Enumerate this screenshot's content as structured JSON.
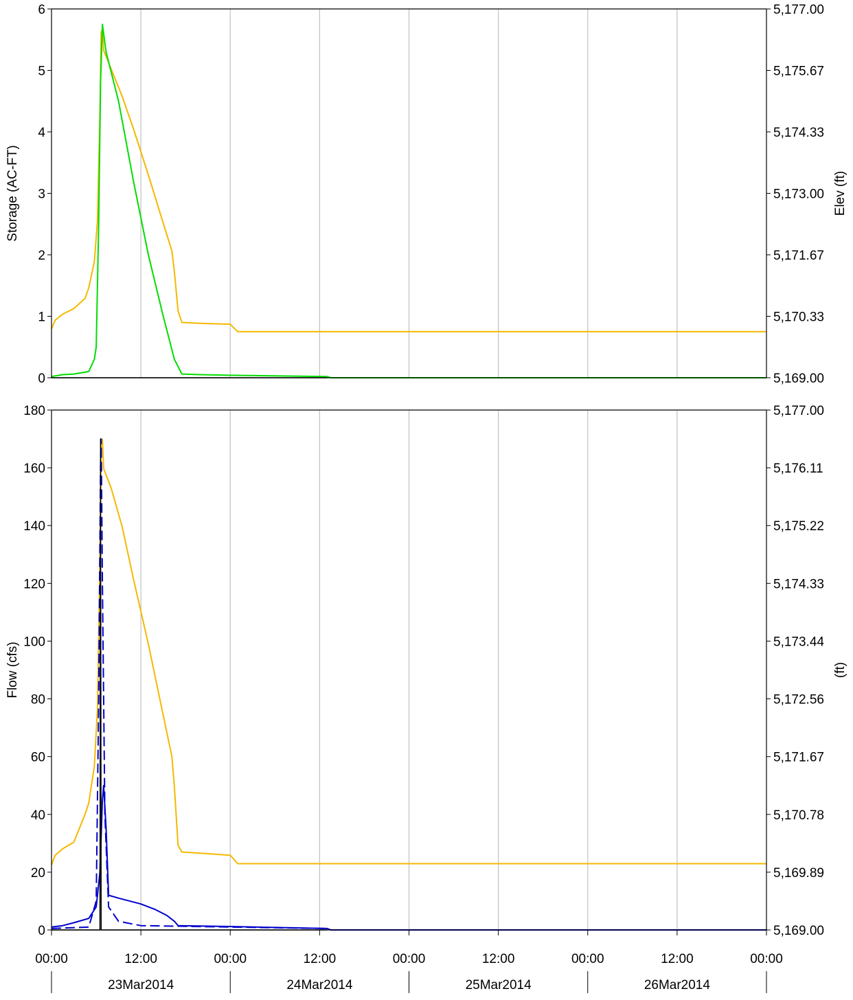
{
  "chart_data": [
    {
      "type": "line",
      "panel": "top",
      "ylabel": "Storage (AC-FT)",
      "y2label": "Elev (ft)",
      "xlim": [
        "2014-03-23T00:00",
        "2014-03-27T00:00"
      ],
      "ylim": [
        0,
        6
      ],
      "y2lim": [
        5169.0,
        5177.0
      ],
      "yticks": [
        "0",
        "1",
        "2",
        "3",
        "4",
        "5",
        "6"
      ],
      "y2ticks": [
        "5,169.00",
        "5,170.33",
        "5,171.67",
        "5,173.00",
        "5,174.33",
        "5,175.67",
        "5,177.00"
      ],
      "grid": true,
      "series": [
        {
          "axis": "y2",
          "color": "#f5b800",
          "style": "solid",
          "points": [
            [
              "2014-03-23T00:00",
              5170.06
            ],
            [
              "2014-03-23T00:30",
              5170.25
            ],
            [
              "2014-03-23T01:30",
              5170.38
            ],
            [
              "2014-03-23T03:00",
              5170.5
            ],
            [
              "2014-03-23T04:30",
              5170.72
            ],
            [
              "2014-03-23T05:00",
              5170.95
            ],
            [
              "2014-03-23T05:45",
              5171.52
            ],
            [
              "2014-03-23T06:10",
              5172.4
            ],
            [
              "2014-03-23T06:30",
              5174.7
            ],
            [
              "2014-03-23T06:40",
              5176.5
            ],
            [
              "2014-03-23T06:50",
              5176.55
            ],
            [
              "2014-03-23T07:00",
              5176.1
            ],
            [
              "2014-03-23T08:00",
              5175.7
            ],
            [
              "2014-03-23T09:30",
              5175.1
            ],
            [
              "2014-03-23T11:00",
              5174.4
            ],
            [
              "2014-03-23T13:00",
              5173.4
            ],
            [
              "2014-03-23T15:00",
              5172.35
            ],
            [
              "2014-03-23T16:10",
              5171.75
            ],
            [
              "2014-03-23T16:30",
              5171.3
            ],
            [
              "2014-03-23T17:00",
              5170.45
            ],
            [
              "2014-03-23T17:30",
              5170.2
            ],
            [
              "2014-03-23T20:00",
              5170.18
            ],
            [
              "2014-03-24T00:00",
              5170.16
            ],
            [
              "2014-03-24T01:00",
              5170.0
            ],
            [
              "2014-03-27T00:00",
              5170.0
            ]
          ]
        },
        {
          "axis": "y",
          "color": "#00dd00",
          "style": "solid",
          "points": [
            [
              "2014-03-23T00:00",
              0.02
            ],
            [
              "2014-03-23T01:30",
              0.05
            ],
            [
              "2014-03-23T03:00",
              0.06
            ],
            [
              "2014-03-23T05:00",
              0.1
            ],
            [
              "2014-03-23T05:45",
              0.3
            ],
            [
              "2014-03-23T06:00",
              0.5
            ],
            [
              "2014-03-23T06:20",
              2.5
            ],
            [
              "2014-03-23T06:35",
              4.8
            ],
            [
              "2014-03-23T06:50",
              5.75
            ],
            [
              "2014-03-23T07:20",
              5.3
            ],
            [
              "2014-03-23T09:00",
              4.5
            ],
            [
              "2014-03-23T11:00",
              3.2
            ],
            [
              "2014-03-23T13:00",
              2.0
            ],
            [
              "2014-03-23T15:00",
              1.0
            ],
            [
              "2014-03-23T16:30",
              0.3
            ],
            [
              "2014-03-23T17:30",
              0.06
            ],
            [
              "2014-03-23T20:00",
              0.05
            ],
            [
              "2014-03-24T00:00",
              0.04
            ],
            [
              "2014-03-24T13:00",
              0.02
            ],
            [
              "2014-03-24T13:30",
              0.0
            ],
            [
              "2014-03-27T00:00",
              0.0
            ]
          ]
        },
        {
          "axis": "y",
          "color": "#000000",
          "style": "solid",
          "points": [
            [
              "2014-03-23T00:00",
              0.0
            ],
            [
              "2014-03-24T13:00",
              0.0
            ]
          ]
        }
      ]
    },
    {
      "type": "line",
      "panel": "bottom",
      "ylabel": "Flow (cfs)",
      "y2label": "(ft)",
      "xlim": [
        "2014-03-23T00:00",
        "2014-03-27T00:00"
      ],
      "ylim": [
        0,
        180
      ],
      "y2lim": [
        5169.0,
        5177.0
      ],
      "yticks": [
        "0",
        "20",
        "40",
        "60",
        "80",
        "100",
        "120",
        "140",
        "160",
        "180"
      ],
      "y2ticks": [
        "5,169.00",
        "5,169.89",
        "5,170.78",
        "5,171.67",
        "5,172.56",
        "5,173.44",
        "5,174.33",
        "5,175.22",
        "5,176.11",
        "5,177.00"
      ],
      "grid": true,
      "series": [
        {
          "axis": "y2",
          "color": "#f5b800",
          "style": "solid",
          "points": [
            [
              "2014-03-23T00:00",
              5170.0
            ],
            [
              "2014-03-23T00:30",
              5170.15
            ],
            [
              "2014-03-23T01:30",
              5170.25
            ],
            [
              "2014-03-23T03:00",
              5170.35
            ],
            [
              "2014-03-23T04:30",
              5170.78
            ],
            [
              "2014-03-23T05:00",
              5170.95
            ],
            [
              "2014-03-23T05:45",
              5171.52
            ],
            [
              "2014-03-23T06:10",
              5172.4
            ],
            [
              "2014-03-23T06:30",
              5174.7
            ],
            [
              "2014-03-23T06:40",
              5176.5
            ],
            [
              "2014-03-23T06:50",
              5176.55
            ],
            [
              "2014-03-23T07:00",
              5176.1
            ],
            [
              "2014-03-23T08:00",
              5175.8
            ],
            [
              "2014-03-23T09:30",
              5175.2
            ],
            [
              "2014-03-23T11:00",
              5174.4
            ],
            [
              "2014-03-23T13:00",
              5173.4
            ],
            [
              "2014-03-23T15:00",
              5172.3
            ],
            [
              "2014-03-23T16:10",
              5171.67
            ],
            [
              "2014-03-23T16:30",
              5171.2
            ],
            [
              "2014-03-23T17:00",
              5170.3
            ],
            [
              "2014-03-23T17:30",
              5170.2
            ],
            [
              "2014-03-23T20:00",
              5170.18
            ],
            [
              "2014-03-24T00:00",
              5170.15
            ],
            [
              "2014-03-24T01:00",
              5170.02
            ],
            [
              "2014-03-27T00:00",
              5170.02
            ]
          ]
        },
        {
          "axis": "y",
          "color": "#0000cc",
          "style": "dashed",
          "points": [
            [
              "2014-03-23T00:00",
              0.5
            ],
            [
              "2014-03-23T05:00",
              1.0
            ],
            [
              "2014-03-23T06:00",
              10.0
            ],
            [
              "2014-03-23T06:20",
              80.0
            ],
            [
              "2014-03-23T06:35",
              160.0
            ],
            [
              "2014-03-23T06:40",
              170.0
            ],
            [
              "2014-03-23T06:50",
              120.0
            ],
            [
              "2014-03-23T07:10",
              40.0
            ],
            [
              "2014-03-23T07:40",
              8.0
            ],
            [
              "2014-03-23T09:00",
              3.0
            ],
            [
              "2014-03-23T12:00",
              1.5
            ],
            [
              "2014-03-24T00:00",
              1.0
            ],
            [
              "2014-03-24T13:00",
              0.5
            ],
            [
              "2014-03-24T13:30",
              0.0
            ],
            [
              "2014-03-27T00:00",
              0.0
            ]
          ]
        },
        {
          "axis": "y",
          "color": "#0000cc",
          "style": "solid",
          "points": [
            [
              "2014-03-23T00:00",
              1.0
            ],
            [
              "2014-03-23T01:30",
              1.5
            ],
            [
              "2014-03-23T03:00",
              2.5
            ],
            [
              "2014-03-23T05:00",
              4.0
            ],
            [
              "2014-03-23T06:00",
              8.0
            ],
            [
              "2014-03-23T06:30",
              20.0
            ],
            [
              "2014-03-23T06:50",
              45.0
            ],
            [
              "2014-03-23T07:00",
              50.0
            ],
            [
              "2014-03-23T07:20",
              35.0
            ],
            [
              "2014-03-23T07:40",
              12.0
            ],
            [
              "2014-03-23T09:00",
              11.0
            ],
            [
              "2014-03-23T12:00",
              9.0
            ],
            [
              "2014-03-23T14:00",
              7.0
            ],
            [
              "2014-03-23T15:30",
              5.0
            ],
            [
              "2014-03-23T16:30",
              3.0
            ],
            [
              "2014-03-23T17:00",
              1.5
            ],
            [
              "2014-03-24T00:00",
              1.2
            ],
            [
              "2014-03-24T13:00",
              0.5
            ],
            [
              "2014-03-24T13:30",
              0.0
            ],
            [
              "2014-03-27T00:00",
              0.0
            ]
          ]
        },
        {
          "axis": "y",
          "color": "#000000",
          "style": "solid",
          "points": [
            [
              "2014-03-23T00:00",
              0.0
            ],
            [
              "2014-03-23T06:30",
              0.0
            ],
            [
              "2014-03-23T06:35",
              170.0
            ],
            [
              "2014-03-23T06:40",
              0.0
            ],
            [
              "2014-03-24T13:00",
              0.0
            ]
          ]
        }
      ]
    }
  ],
  "x_axis": {
    "time_ticks": [
      {
        "t": "2014-03-23T00:00",
        "label": "00:00"
      },
      {
        "t": "2014-03-23T12:00",
        "label": "12:00"
      },
      {
        "t": "2014-03-24T00:00",
        "label": "00:00"
      },
      {
        "t": "2014-03-24T12:00",
        "label": "12:00"
      },
      {
        "t": "2014-03-25T00:00",
        "label": "00:00"
      },
      {
        "t": "2014-03-25T12:00",
        "label": "12:00"
      },
      {
        "t": "2014-03-26T00:00",
        "label": "00:00"
      },
      {
        "t": "2014-03-26T12:00",
        "label": "12:00"
      },
      {
        "t": "2014-03-27T00:00",
        "label": "00:00"
      }
    ],
    "dates": [
      {
        "t": "2014-03-23T12:00",
        "label": "23Mar2014"
      },
      {
        "t": "2014-03-24T12:00",
        "label": "24Mar2014"
      },
      {
        "t": "2014-03-25T12:00",
        "label": "25Mar2014"
      },
      {
        "t": "2014-03-26T12:00",
        "label": "26Mar2014"
      }
    ]
  },
  "colors": {
    "elevation": "#f5b800",
    "storage": "#00dd00",
    "flow": "#0000cc",
    "grid": "#c0c0c0",
    "axis": "#000000"
  }
}
